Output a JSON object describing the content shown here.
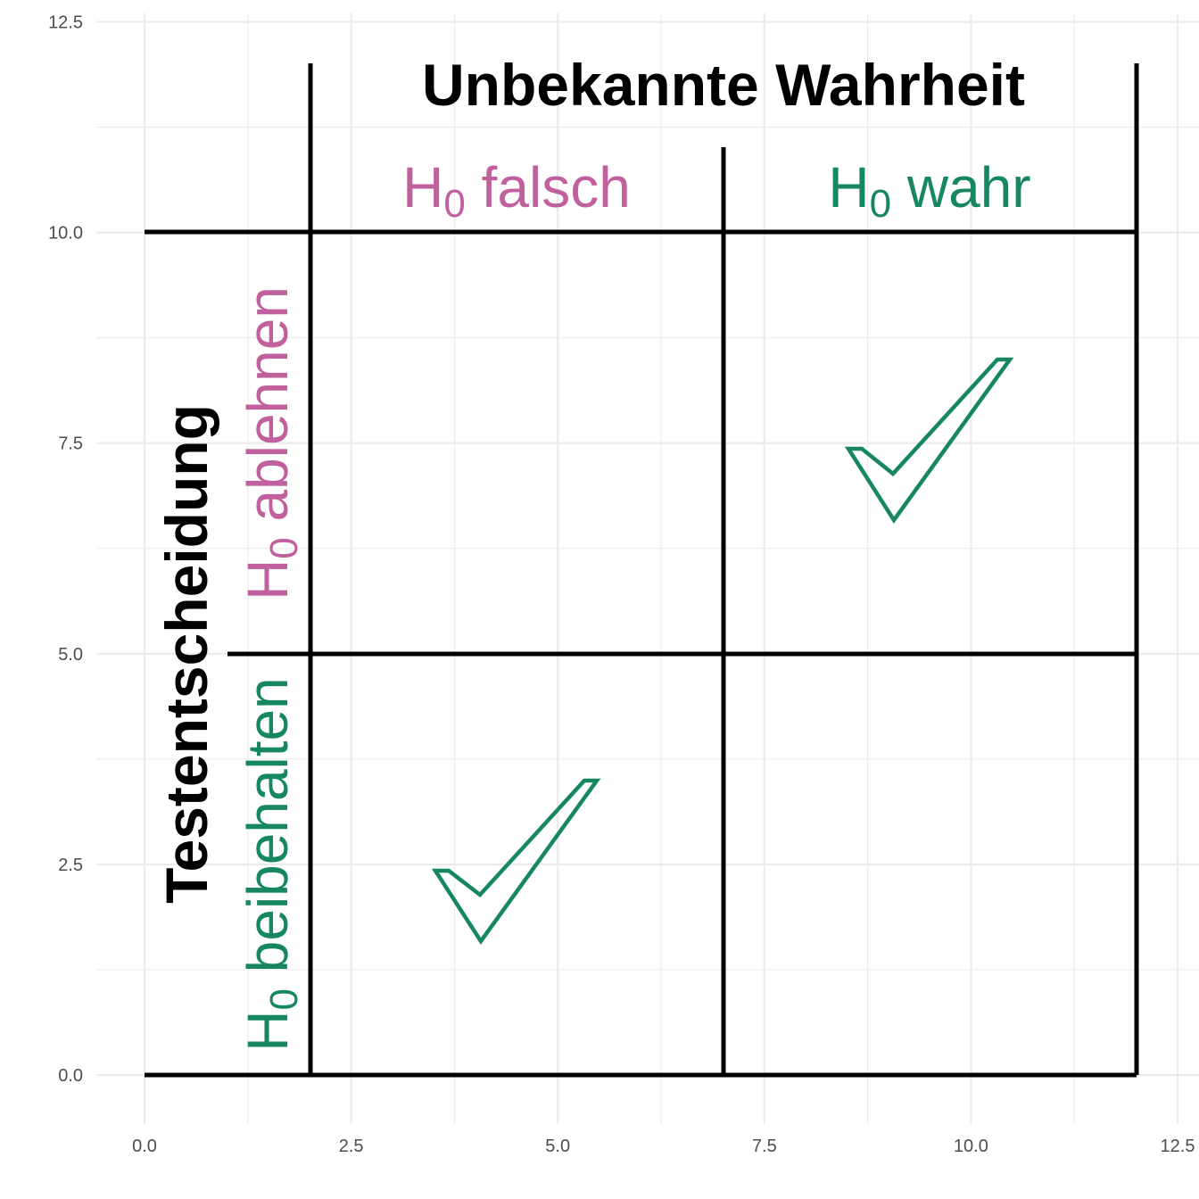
{
  "colors": {
    "falsch": "#c0609c",
    "wahr": "#16875f",
    "lines": "#000000",
    "grid": "#ebebeb",
    "tick_text": "#4d4d4d"
  },
  "axes": {
    "x_ticks": [
      "0.0",
      "2.5",
      "5.0",
      "7.5",
      "10.0",
      "12.5"
    ],
    "y_ticks": [
      "0.0",
      "2.5",
      "5.0",
      "7.5",
      "10.0",
      "12.5"
    ],
    "xlim": [
      0,
      12.5
    ],
    "ylim": [
      0,
      12.5
    ]
  },
  "header": {
    "title": "Unbekannte Wahrheit",
    "col_falsch": {
      "base": "H",
      "sub": "0",
      "rest": " falsch"
    },
    "col_wahr": {
      "base": "H",
      "sub": "0",
      "rest": " wahr"
    }
  },
  "side": {
    "title": "Testentscheidung",
    "row_ablehnen": {
      "base": "H",
      "sub": "0",
      "rest": " ablehnen"
    },
    "row_beibehalten": {
      "base": "H",
      "sub": "0",
      "rest": " beibehalten"
    }
  },
  "marks": [
    {
      "name": "check-mark-rejects-true",
      "icon": "check-icon",
      "color": "wahr",
      "cell": "ablehnen-wahr"
    },
    {
      "name": "check-mark-keeps-false",
      "icon": "check-icon",
      "color": "wahr",
      "cell": "beibehalten-falsch"
    }
  ]
}
